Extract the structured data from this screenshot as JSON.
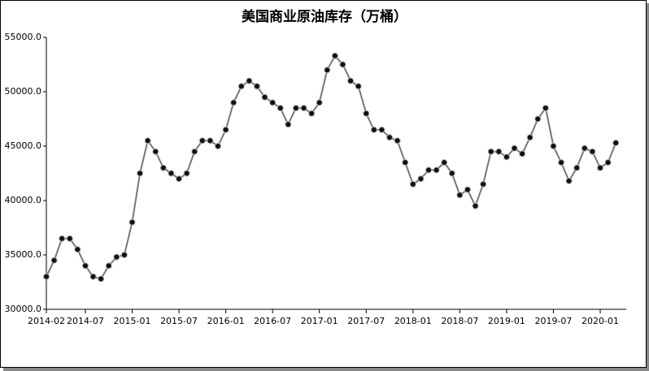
{
  "chart_data": {
    "type": "line",
    "title": "美国商业原油库存（万桶）",
    "categories": [
      "2014-02",
      null,
      null,
      null,
      null,
      "2014-07",
      null,
      null,
      null,
      null,
      null,
      "2015-01",
      null,
      null,
      null,
      null,
      null,
      "2015-07",
      null,
      null,
      null,
      null,
      null,
      "2016-01",
      null,
      null,
      null,
      null,
      null,
      "2016-07",
      null,
      null,
      null,
      null,
      null,
      "2017-01",
      null,
      null,
      null,
      null,
      null,
      "2017-07",
      null,
      null,
      null,
      null,
      null,
      "2018-01",
      null,
      null,
      null,
      null,
      null,
      "2018-07",
      null,
      null,
      null,
      null,
      null,
      "2019-01",
      null,
      null,
      null,
      null,
      null,
      "2019-07",
      null,
      null,
      null,
      null,
      null,
      "2020-01",
      null,
      null
    ],
    "values": [
      33000,
      34500,
      36500,
      36500,
      35500,
      34000,
      33000,
      32800,
      34000,
      34800,
      35000,
      38000,
      42500,
      45500,
      44500,
      43000,
      42500,
      42000,
      42500,
      44500,
      45500,
      45500,
      45000,
      46500,
      49000,
      50500,
      51000,
      50500,
      49500,
      49000,
      48500,
      47000,
      48500,
      48500,
      48000,
      49000,
      52000,
      53300,
      52500,
      51000,
      50500,
      48000,
      46500,
      46500,
      45800,
      45500,
      43500,
      41500,
      42000,
      42800,
      42800,
      43500,
      42500,
      40500,
      41000,
      39500,
      41500,
      44500,
      44500,
      44000,
      44800,
      44300,
      45800,
      47500,
      48500,
      45000,
      43500,
      41800,
      43000,
      44800,
      44500,
      43000,
      43500,
      45300
    ],
    "color": "#111111",
    "ylim": [
      30000,
      55000
    ],
    "yticks": [
      {
        "value": 30000,
        "label": "30000.0"
      },
      {
        "value": 35000,
        "label": "35000.0"
      },
      {
        "value": 40000,
        "label": "40000.0"
      },
      {
        "value": 45000,
        "label": "45000.0"
      },
      {
        "value": 50000,
        "label": "50000.0"
      },
      {
        "value": 55000,
        "label": "55000.0"
      }
    ],
    "grid": false
  }
}
